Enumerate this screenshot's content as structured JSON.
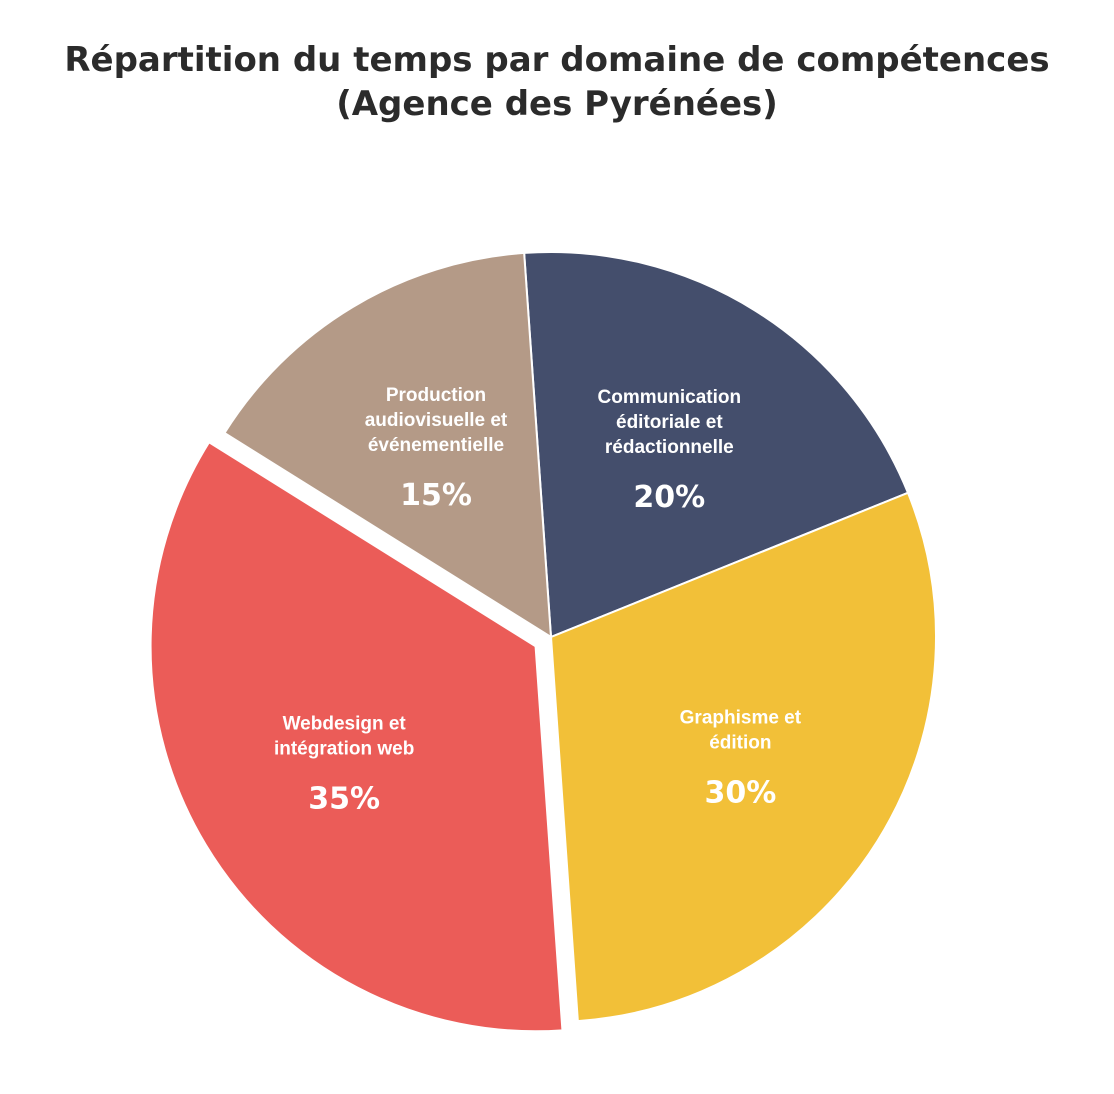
{
  "chart_data": {
    "type": "pie",
    "title_lines": [
      "Répartition du temps par domaine de compétences",
      "(Agence des Pyrénées)"
    ],
    "start_angle_deg": 94,
    "direction": "clockwise",
    "slices": [
      {
        "name": "Communication éditoriale et rédactionnelle",
        "label_lines": [
          "Communication",
          "éditoriale et",
          "rédactionnelle"
        ],
        "value": 20,
        "value_label": "20%",
        "color": "#444e6c",
        "exploded": false
      },
      {
        "name": "Graphisme et édition",
        "label_lines": [
          "Graphisme et",
          "édition"
        ],
        "value": 30,
        "value_label": "30%",
        "color": "#f2c038",
        "exploded": false
      },
      {
        "name": "Webdesign et intégration web",
        "label_lines": [
          "Webdesign et",
          "intégration web"
        ],
        "value": 35,
        "value_label": "35%",
        "color": "#eb5c58",
        "exploded": true
      },
      {
        "name": "Production audiovisuelle et événementielle",
        "label_lines": [
          "Production",
          "audiovisuelle et",
          "événementielle"
        ],
        "value": 15,
        "value_label": "15%",
        "color": "#b49a87",
        "exploded": false
      }
    ]
  }
}
